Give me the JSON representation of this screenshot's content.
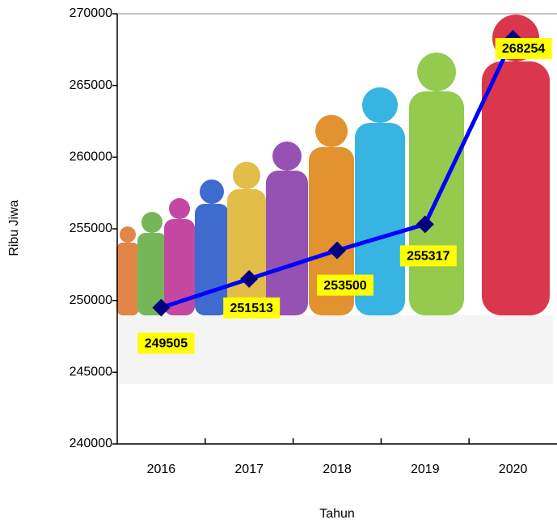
{
  "chart_data": {
    "type": "line",
    "x_label": "Tahun",
    "y_label": "Ribu Jiwa",
    "categories": [
      "2016",
      "2017",
      "2018",
      "2019",
      "2020"
    ],
    "values": [
      249505,
      251513,
      253500,
      255317,
      268254
    ],
    "color": "#0000ff",
    "marker_color": "#000080",
    "label_background": "#ffff00",
    "ylim": [
      240000,
      270000
    ],
    "yticks": [
      240000,
      245000,
      250000,
      255000,
      260000,
      265000,
      270000
    ],
    "grid": false
  }
}
